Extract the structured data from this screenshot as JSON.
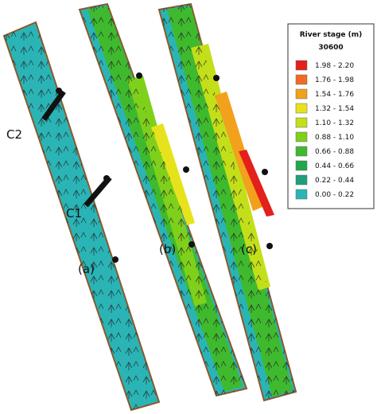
{
  "legend": {
    "title": "River stage (m)",
    "subtitle": "30600",
    "items": [
      {
        "label": "1.98 -  2.20",
        "color": "#e3201b"
      },
      {
        "label": "1.76 -  1.98",
        "color": "#f26a21"
      },
      {
        "label": "1.54 -  1.76",
        "color": "#f2a11c"
      },
      {
        "label": "1.32 -  1.54",
        "color": "#e6e31d"
      },
      {
        "label": "1.10 -  1.32",
        "color": "#c3df1a"
      },
      {
        "label": "0.88 -  1.10",
        "color": "#7fd01b"
      },
      {
        "label": "0.66 -  0.88",
        "color": "#3fba2e"
      },
      {
        "label": "0.44 -  0.66",
        "color": "#22a74a"
      },
      {
        "label": "0.22 -  0.44",
        "color": "#1f9f7b"
      },
      {
        "label": "0.00 -  0.22",
        "color": "#2bb4b6"
      }
    ]
  },
  "labels": {
    "panels": [
      "(a)",
      "(b)",
      "(c)"
    ],
    "sections": [
      "C1",
      "C2"
    ]
  }
}
